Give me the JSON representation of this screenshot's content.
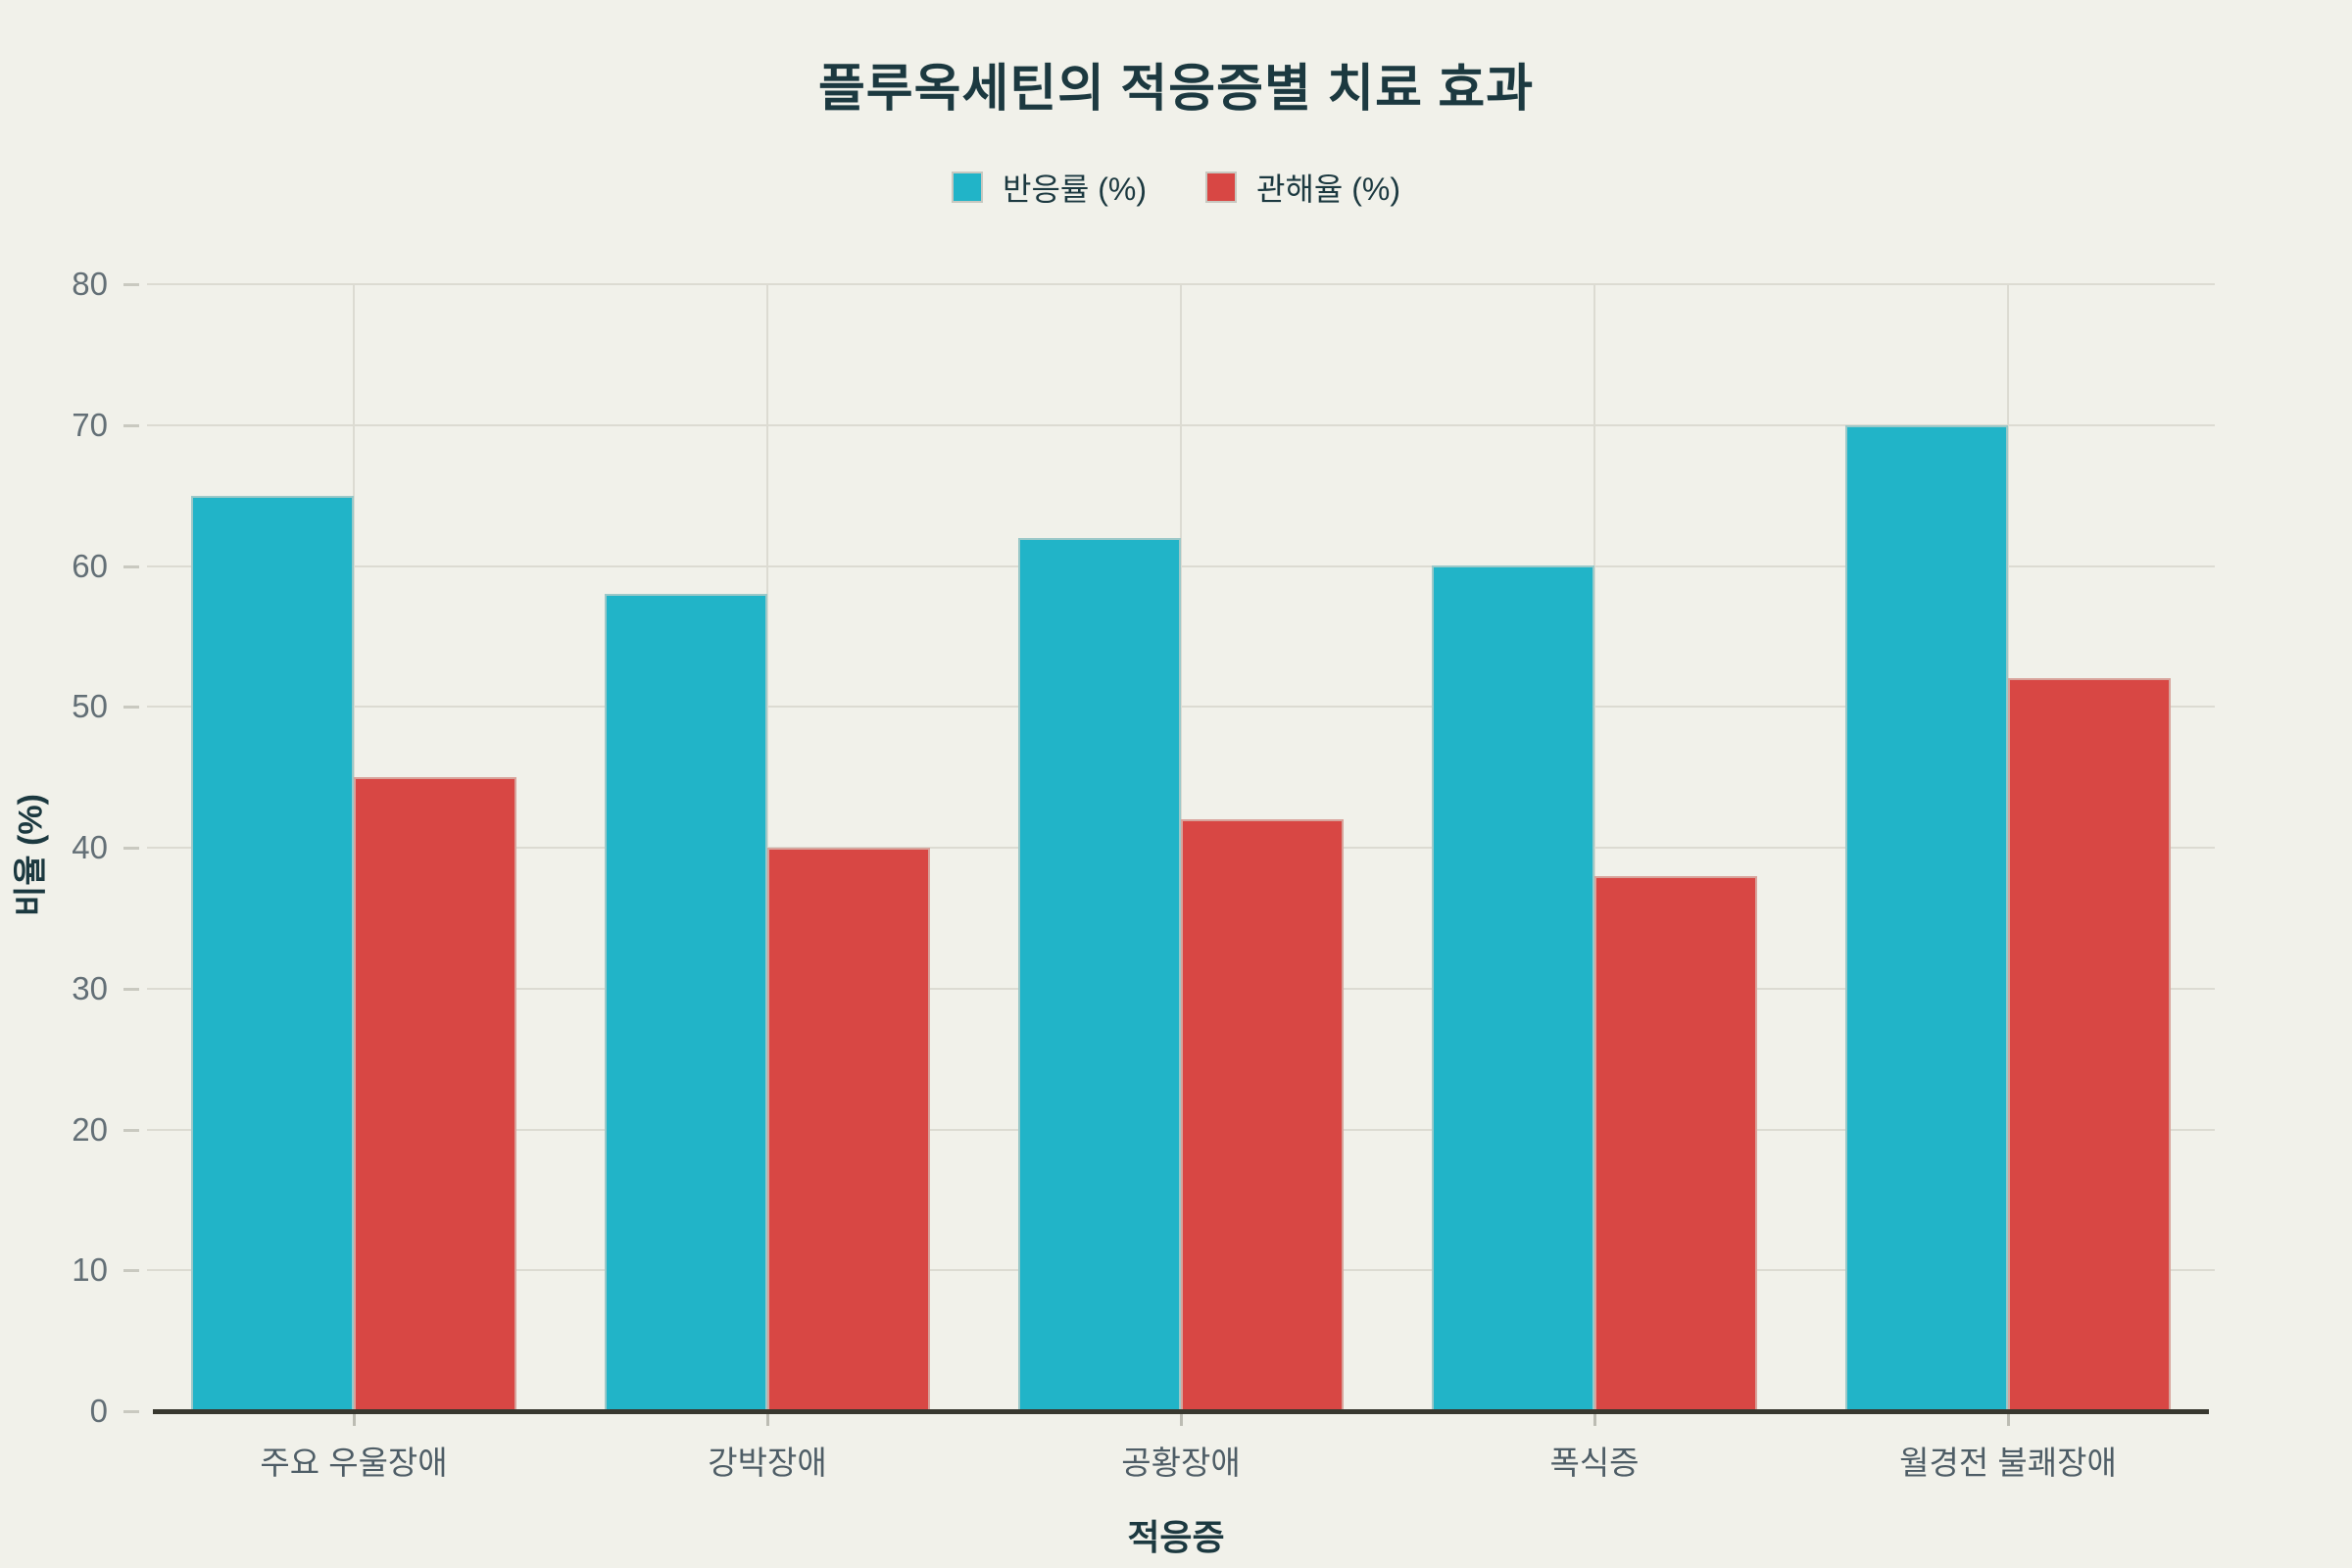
{
  "page": {
    "background": "#f1f1ea"
  },
  "chart_data": {
    "type": "bar",
    "title": "플루옥세틴의 적응증별 치료 효과",
    "xlabel": "적응증",
    "ylabel": "비율 (%)",
    "categories": [
      "주요 우울장애",
      "강박장애",
      "공황장애",
      "폭식증",
      "월경전 불쾌장애"
    ],
    "series": [
      {
        "name": "반응률 (%)",
        "color": "#21b4c8",
        "values": [
          65,
          58,
          62,
          60,
          70
        ]
      },
      {
        "name": "관해율 (%)",
        "color": "#d84744",
        "values": [
          45,
          40,
          42,
          38,
          52
        ]
      }
    ],
    "ylim": [
      0,
      80
    ],
    "yticks": [
      0,
      10,
      20,
      30,
      40,
      50,
      60,
      70,
      80
    ],
    "grid": "on",
    "legend_position": "top"
  },
  "style_colors": {
    "title_text": "#1c3940",
    "y_tick_text": "#636f76",
    "x_tick_text": "#4e5d66",
    "gridline": "#dcdbd2",
    "axis_line": "#38382f",
    "bar_stroke": "#d8d2c8",
    "tick_mark": "#c9c9c0"
  }
}
